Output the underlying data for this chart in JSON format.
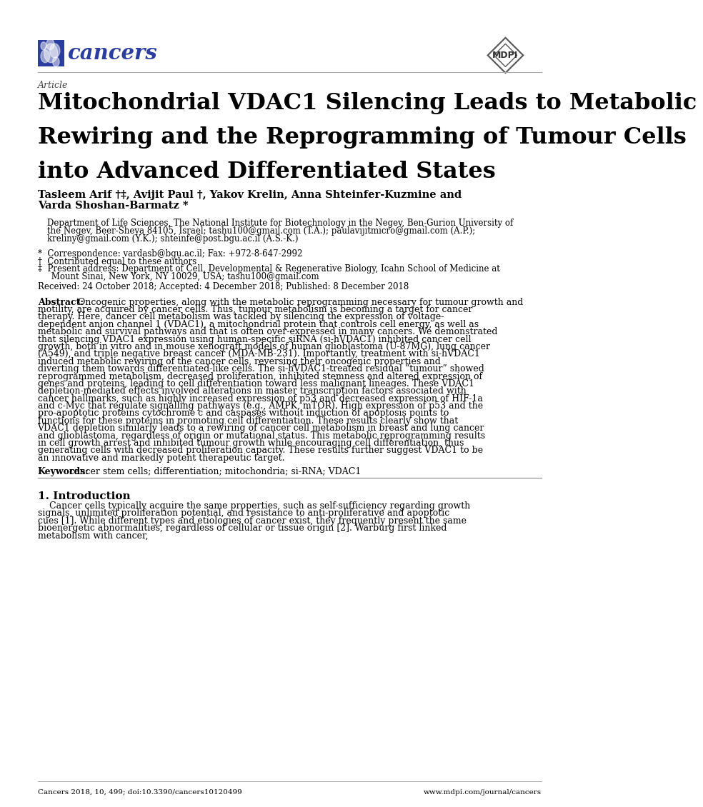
{
  "page_width": 10.2,
  "page_height": 14.42,
  "bg_color": "#ffffff",
  "journal_name": "cancers",
  "journal_color": "#2b3d9e",
  "mdpi_color": "#333333",
  "article_label": "Article",
  "title_line1": "Mitochondrial VDAC1 Silencing Leads to Metabolic",
  "title_line2": "Rewiring and the Reprogramming of Tumour Cells",
  "title_line3": "into Advanced Differentiated States",
  "authors_line1": "Tasleem Arif †‡, Avijit Paul †, Yakov Krelin, Anna Shteinfer-Kuzmine and",
  "authors_line2": "Varda Shoshan-Barmatz *",
  "affiliation_line1": "Department of Life Sciences, The National Institute for Biotechnology in the Negev, Ben-Gurion University of",
  "affiliation_line2": "the Negev, Beer-Sheva 84105, Israel; tashu100@gmail.com (T.A.); paulavijitmicro@gmail.com (A.P.);",
  "affiliation_line3": "kreliny@gmail.com (Y.K.); shteinfe@post.bgu.ac.il (A.S.-K.)",
  "correspondence": "*  Correspondence: vardasb@bgu.ac.il; Fax: +972-8-647-2992",
  "contributed": "†  Contributed equal to these authors",
  "present_addr1": "‡  Present address: Department of Cell, Developmental & Regenerative Biology, Icahn School of Medicine at",
  "present_addr2": "     Mount Sinai, New York, NY 10029, USA; tashu100@gmail.com",
  "received": "Received: 24 October 2018; Accepted: 4 December 2018; Published: 8 December 2018",
  "abstract_label": "Abstract:",
  "abstract_text": "Oncogenic properties, along with the metabolic reprogramming necessary for tumour growth and motility, are acquired by cancer cells. Thus, tumour metabolism is becoming a target for cancer therapy. Here, cancer cell metabolism was tackled by silencing the expression of voltage-dependent anion channel 1 (VDAC1), a mitochondrial protein that controls cell energy, as well as metabolic and survival pathways and that is often over-expressed in many cancers. We demonstrated that silencing VDAC1 expression using human-specific siRNA (si-hVDAC1) inhibited cancer cell growth, both in vitro and in mouse xenograft models of human glioblastoma (U-87MG), lung cancer (A549), and triple negative breast cancer (MDA-MB-231). Importantly, treatment with si-hVDAC1 induced metabolic rewiring of the cancer cells, reversing their oncogenic properties and diverting them towards differentiated-like cells. The si-hVDAC1-treated residual “tumour” showed reprogrammed metabolism, decreased proliferation, inhibited stemness and altered expression of genes and proteins, leading to cell differentiation toward less malignant lineages. These VDAC1 depletion-mediated effects involved alterations in master transcription factors associated with cancer hallmarks, such as highly increased expression of p53 and decreased expression of HIF-1a and c-Myc that regulate signalling pathways (e.g., AMPK, mTOR). High expression of p53 and the pro-apoptotic proteins cytochrome c and caspases without induction of apoptosis points to functions for these proteins in promoting cell differentiation. These results clearly show that VDAC1 depletion similarly leads to a rewiring of cancer cell metabolism in breast and lung cancer and glioblastoma, regardless of origin or mutational status. This metabolic reprogramming results in cell growth arrest and inhibited tumour growth while encouraging cell differentiation, thus generating cells with decreased proliferation capacity. These results further suggest VDAC1 to be an innovative and markedly potent therapeutic target.",
  "keywords_label": "Keywords:",
  "keywords_text": "cancer stem cells; differentiation; mitochondria; si-RNA; VDAC1",
  "section1_title": "1. Introduction",
  "section1_text": "    Cancer cells typically acquire the same properties, such as self-sufficiency regarding growth signals, unlimited proliferation potential, and resistance to anti-proliferative and apoptotic cues [1]. While different types and etiologies of cancer exist, they frequently present the same bioenergetic abnormalities, regardless of cellular or tissue origin [2]. Warburg first linked metabolism with cancer,",
  "footer_left": "Cancers 2018, 10, 499; doi:10.3390/cancers10120499",
  "footer_right": "www.mdpi.com/journal/cancers"
}
